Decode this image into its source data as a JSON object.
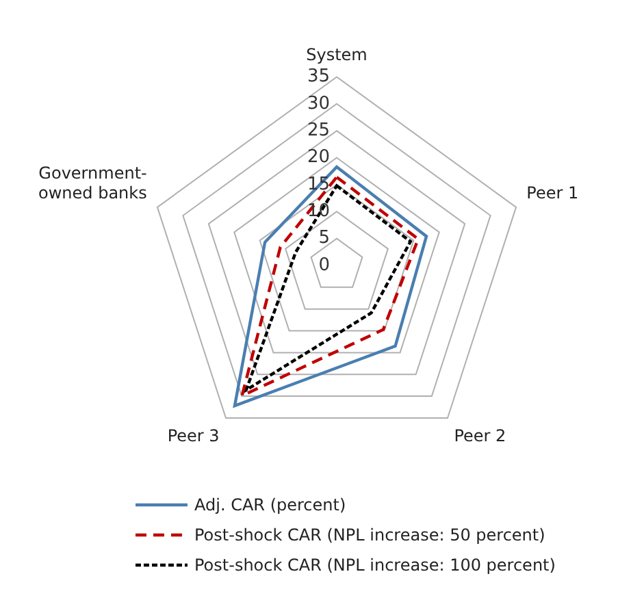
{
  "chart_data": {
    "type": "radar",
    "categories": [
      "System",
      "Peer 1",
      "Peer 2",
      "Peer 3",
      "Government-owned banks"
    ],
    "series": [
      {
        "name": "Adj. CAR (percent)",
        "color": "#4a7eb0",
        "line_style": "solid",
        "values": [
          18.3,
          17.5,
          18.5,
          32.2,
          14.0
        ]
      },
      {
        "name": "Post-shock CAR (NPL increase: 50 percent)",
        "color": "#c00000",
        "line_style": "dashed",
        "values": [
          16.4,
          15.9,
          14.7,
          29.9,
          11.0
        ]
      },
      {
        "name": "Post-shock CAR (NPL increase: 100 percent)",
        "color": "#000000",
        "line_style": "dotted",
        "values": [
          14.8,
          14.4,
          10.9,
          28.6,
          8.0
        ]
      }
    ],
    "ylim": [
      0,
      35
    ],
    "yticks": [
      0,
      5,
      10,
      15,
      20,
      25,
      30,
      35
    ],
    "grid": true,
    "legend": "bottom",
    "marker": "none"
  }
}
